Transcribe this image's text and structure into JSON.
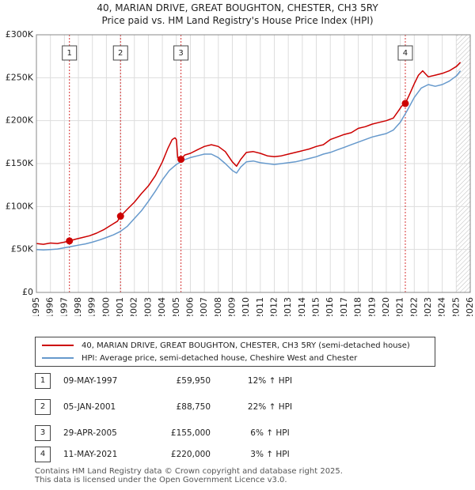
{
  "chart_data": {
    "type": "line",
    "title": "40, MARIAN DRIVE, GREAT BOUGHTON, CHESTER, CH3 5RY",
    "subtitle": "Price paid vs. HM Land Registry's House Price Index (HPI)",
    "xlabel": "",
    "ylabel": "",
    "xlim": [
      1995,
      2026
    ],
    "ylim": [
      0,
      300000
    ],
    "x_ticks": [
      1995,
      1996,
      1997,
      1998,
      1999,
      2000,
      2001,
      2002,
      2003,
      2004,
      2005,
      2006,
      2007,
      2008,
      2009,
      2010,
      2011,
      2012,
      2013,
      2014,
      2015,
      2016,
      2017,
      2018,
      2019,
      2020,
      2021,
      2022,
      2023,
      2024,
      2025,
      2026
    ],
    "y_ticks": [
      {
        "value": 0,
        "label": "£0"
      },
      {
        "value": 50000,
        "label": "£50K"
      },
      {
        "value": 100000,
        "label": "£100K"
      },
      {
        "value": 150000,
        "label": "£150K"
      },
      {
        "value": 200000,
        "label": "£200K"
      },
      {
        "value": 250000,
        "label": "£250K"
      },
      {
        "value": 300000,
        "label": "£300K"
      }
    ],
    "grid": true,
    "future_hatch_from": 2025.0,
    "series": [
      {
        "name": "40, MARIAN DRIVE, GREAT BOUGHTON, CHESTER, CH3 5RY (semi-detached house)",
        "color": "#cc0000",
        "x": [
          1995.0,
          1995.5,
          1996.0,
          1996.5,
          1997.0,
          1997.36,
          1997.8,
          1998.3,
          1998.8,
          1999.3,
          1999.8,
          2000.3,
          2000.8,
          2001.01,
          2001.5,
          2002.0,
          2002.5,
          2003.0,
          2003.5,
          2004.0,
          2004.4,
          2004.7,
          2004.9,
          2005.0,
          2005.1,
          2005.33,
          2005.6,
          2006.0,
          2006.5,
          2007.0,
          2007.5,
          2008.0,
          2008.5,
          2009.0,
          2009.3,
          2009.6,
          2010.0,
          2010.5,
          2011.0,
          2011.5,
          2012.0,
          2012.5,
          2013.0,
          2013.5,
          2014.0,
          2014.5,
          2015.0,
          2015.5,
          2016.0,
          2016.5,
          2017.0,
          2017.5,
          2018.0,
          2018.5,
          2019.0,
          2019.5,
          2020.0,
          2020.5,
          2020.9,
          2021.1,
          2021.36,
          2021.7,
          2022.0,
          2022.3,
          2022.6,
          2023.0,
          2023.5,
          2024.0,
          2024.5,
          2025.0,
          2025.3
        ],
        "y": [
          57000,
          56000,
          57500,
          57000,
          58500,
          59950,
          62000,
          64000,
          66000,
          69000,
          73000,
          78000,
          83000,
          88750,
          97000,
          105000,
          115000,
          124000,
          136000,
          152000,
          168000,
          178000,
          180000,
          178000,
          157000,
          155000,
          160000,
          162000,
          166000,
          170000,
          172000,
          170000,
          164000,
          152000,
          147000,
          155000,
          163000,
          164000,
          162000,
          159000,
          158000,
          159000,
          161000,
          163000,
          165000,
          167000,
          170000,
          172000,
          178000,
          181000,
          184000,
          186000,
          191000,
          193000,
          196000,
          198000,
          200000,
          203000,
          212000,
          217000,
          220000,
          232000,
          243000,
          253000,
          258000,
          251000,
          253000,
          255000,
          258000,
          263000,
          268000
        ]
      },
      {
        "name": "HPI: Average price, semi-detached house, Cheshire West and Chester",
        "color": "#6699cc",
        "x": [
          1995.0,
          1995.5,
          1996.0,
          1996.5,
          1997.0,
          1997.5,
          1998.0,
          1998.5,
          1999.0,
          1999.5,
          2000.0,
          2000.5,
          2001.0,
          2001.5,
          2002.0,
          2002.5,
          2003.0,
          2003.5,
          2004.0,
          2004.5,
          2005.0,
          2005.5,
          2006.0,
          2006.5,
          2007.0,
          2007.5,
          2008.0,
          2008.5,
          2009.0,
          2009.3,
          2009.6,
          2010.0,
          2010.5,
          2011.0,
          2011.5,
          2012.0,
          2012.5,
          2013.0,
          2013.5,
          2014.0,
          2014.5,
          2015.0,
          2015.5,
          2016.0,
          2016.5,
          2017.0,
          2017.5,
          2018.0,
          2018.5,
          2019.0,
          2019.5,
          2020.0,
          2020.5,
          2021.0,
          2021.5,
          2022.0,
          2022.5,
          2023.0,
          2023.5,
          2024.0,
          2024.5,
          2025.0,
          2025.3
        ],
        "y": [
          50000,
          49500,
          50000,
          50500,
          52000,
          53500,
          55000,
          56500,
          58500,
          61000,
          64000,
          67000,
          71000,
          77000,
          86000,
          95000,
          106000,
          118000,
          131000,
          142000,
          149000,
          154000,
          157000,
          159000,
          161000,
          161000,
          157000,
          150000,
          142000,
          139000,
          146000,
          152000,
          153000,
          151000,
          150000,
          149000,
          150000,
          151000,
          152000,
          154000,
          156000,
          158000,
          161000,
          163000,
          166000,
          169000,
          172000,
          175000,
          178000,
          181000,
          183000,
          185000,
          189000,
          198000,
          212000,
          227000,
          238000,
          242000,
          240000,
          242000,
          246000,
          252000,
          258000
        ]
      }
    ],
    "annotations": [
      {
        "label": "1",
        "x": 1997.36,
        "y": 59950
      },
      {
        "label": "2",
        "x": 2001.01,
        "y": 88750
      },
      {
        "label": "3",
        "x": 2005.33,
        "y": 155000
      },
      {
        "label": "4",
        "x": 2021.36,
        "y": 220000
      }
    ]
  },
  "legend": {
    "items": [
      {
        "label": "40, MARIAN DRIVE, GREAT BOUGHTON, CHESTER, CH3 5RY (semi-detached house)",
        "color": "#cc0000"
      },
      {
        "label": "HPI: Average price, semi-detached house, Cheshire West and Chester",
        "color": "#6699cc"
      }
    ]
  },
  "transactions": [
    {
      "num": "1",
      "date": "09-MAY-1997",
      "price": "£59,950",
      "hpi": "12% ↑ HPI"
    },
    {
      "num": "2",
      "date": "05-JAN-2001",
      "price": "£88,750",
      "hpi": "22% ↑ HPI"
    },
    {
      "num": "3",
      "date": "29-APR-2005",
      "price": "£155,000",
      "hpi": "6% ↑ HPI"
    },
    {
      "num": "4",
      "date": "11-MAY-2021",
      "price": "£220,000",
      "hpi": "3% ↑ HPI"
    }
  ],
  "footer": {
    "line1": "Contains HM Land Registry data © Crown copyright and database right 2025.",
    "line2": "This data is licensed under the Open Government Licence v3.0."
  }
}
